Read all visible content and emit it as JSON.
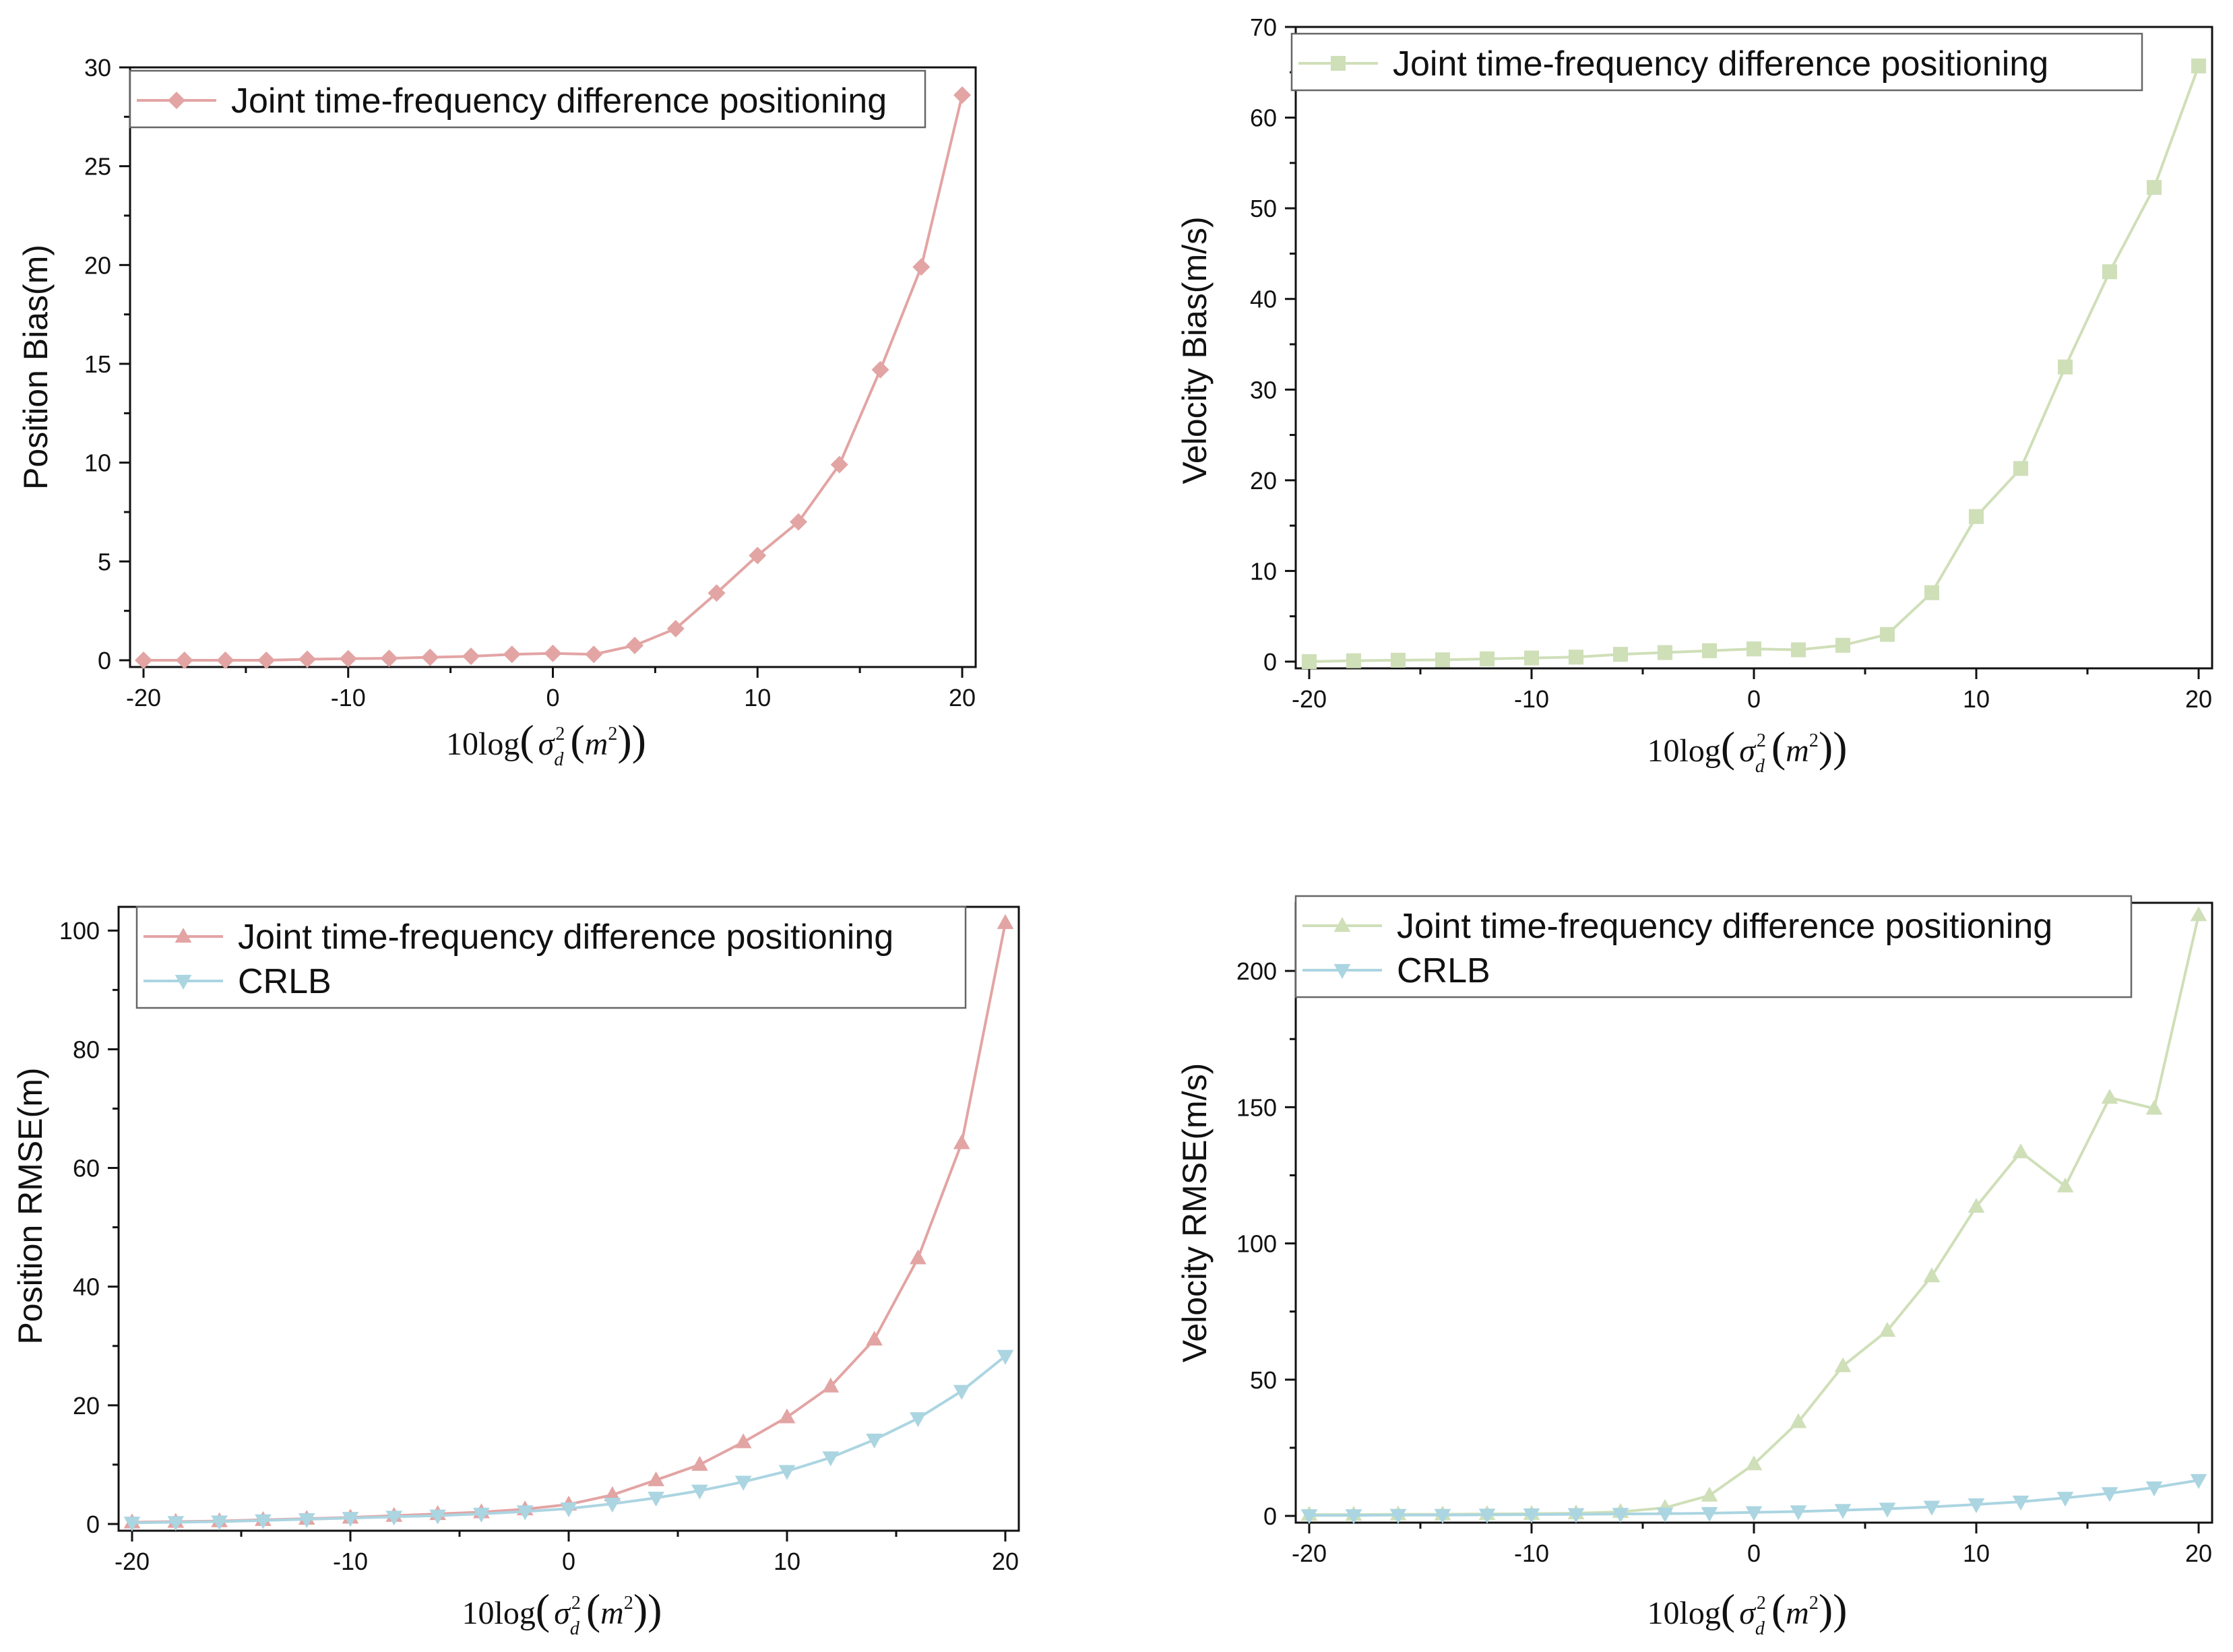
{
  "chart_data": [
    {
      "id": "pos_bias",
      "type": "line",
      "x_label": "10log(σd²(m²))",
      "ylabel": "Position Bias(m)",
      "xlim": [
        -20,
        20
      ],
      "ylim": [
        0,
        30
      ],
      "xticks": [
        -20,
        -10,
        0,
        10,
        20
      ],
      "yticks": [
        0,
        5,
        10,
        15,
        20,
        25,
        30
      ],
      "xtick_labels": [
        "-20",
        "-10",
        "0",
        "10",
        "20"
      ],
      "ytick_labels": [
        "0",
        "5",
        "10",
        "15",
        "20",
        "25",
        "30"
      ],
      "x": [
        -20,
        -18,
        -16,
        -14,
        -12,
        -10,
        -8,
        -6,
        -4,
        -2,
        0,
        2,
        4,
        6,
        8,
        10,
        12,
        14,
        16,
        18,
        20
      ],
      "series": [
        {
          "name": "Joint time-frequency difference positioning",
          "color": "#e3a4a4",
          "marker": "diamond",
          "values": [
            0.0,
            0.0,
            0.0,
            0.0,
            0.05,
            0.08,
            0.1,
            0.15,
            0.2,
            0.3,
            0.35,
            0.3,
            0.75,
            1.6,
            3.4,
            5.3,
            7.0,
            9.9,
            14.7,
            19.9,
            28.6
          ]
        }
      ],
      "legend": "top"
    },
    {
      "id": "vel_bias",
      "type": "line",
      "x_label": "10log(σd²(m²))",
      "ylabel": "Velocity Bias(m/s)",
      "xlim": [
        -20,
        20
      ],
      "ylim": [
        0,
        70
      ],
      "xticks": [
        -20,
        -10,
        0,
        10,
        20
      ],
      "yticks": [
        0,
        10,
        20,
        30,
        40,
        50,
        60,
        70
      ],
      "xtick_labels": [
        "-20",
        "-10",
        "0",
        "10",
        "20"
      ],
      "ytick_labels": [
        "0",
        "10",
        "20",
        "30",
        "40",
        "50",
        "60",
        "70"
      ],
      "x": [
        -20,
        -18,
        -16,
        -14,
        -12,
        -10,
        -8,
        -6,
        -4,
        -2,
        0,
        2,
        4,
        6,
        8,
        10,
        12,
        14,
        16,
        18,
        20
      ],
      "series": [
        {
          "name": "Joint time-frequency difference positioning",
          "color": "#cfdfb8",
          "marker": "square",
          "values": [
            0.0,
            0.1,
            0.15,
            0.2,
            0.3,
            0.4,
            0.5,
            0.8,
            1.0,
            1.2,
            1.4,
            1.3,
            1.8,
            3.0,
            7.6,
            16.0,
            21.3,
            32.5,
            43.0,
            52.3,
            65.7
          ]
        }
      ],
      "legend": "top"
    },
    {
      "id": "pos_rmse",
      "type": "line",
      "x_label": "10log(σd²(m²))",
      "ylabel": "Position RMSE(m)",
      "xlim": [
        -20,
        20
      ],
      "ylim": [
        0,
        104
      ],
      "xticks": [
        -20,
        -10,
        0,
        10,
        20
      ],
      "yticks": [
        0,
        20,
        40,
        60,
        80,
        100
      ],
      "xtick_labels": [
        "-20",
        "-10",
        "0",
        "10",
        "20"
      ],
      "ytick_labels": [
        "0",
        "20",
        "40",
        "60",
        "80",
        "100"
      ],
      "x": [
        -20,
        -18,
        -16,
        -14,
        -12,
        -10,
        -8,
        -6,
        -4,
        -2,
        0,
        2,
        4,
        6,
        8,
        10,
        12,
        14,
        16,
        18,
        20
      ],
      "series": [
        {
          "name": "Joint time-frequency difference positioning",
          "color": "#e3a4a4",
          "marker": "triangle-up",
          "values": [
            0.3,
            0.4,
            0.5,
            0.7,
            0.9,
            1.1,
            1.4,
            1.7,
            2.0,
            2.5,
            3.3,
            4.9,
            7.4,
            10.0,
            13.8,
            18.0,
            23.2,
            31.1,
            44.8,
            64.2,
            101.3
          ]
        },
        {
          "name": "CRLB",
          "color": "#abd5e1",
          "marker": "triangle-down",
          "values": [
            0.2,
            0.3,
            0.4,
            0.6,
            0.8,
            1.0,
            1.2,
            1.4,
            1.7,
            2.1,
            2.6,
            3.4,
            4.4,
            5.6,
            7.1,
            8.9,
            11.2,
            14.2,
            17.8,
            22.4,
            28.3
          ]
        }
      ],
      "legend": "top"
    },
    {
      "id": "vel_rmse",
      "type": "line",
      "x_label": "10log(σd²(m²))",
      "ylabel": "Velocity RMSE(m/s)",
      "xlim": [
        -20,
        20
      ],
      "ylim": [
        0,
        225
      ],
      "xticks": [
        -20,
        -10,
        0,
        10,
        20
      ],
      "yticks": [
        0,
        50,
        100,
        150,
        200
      ],
      "xtick_labels": [
        "-20",
        "-10",
        "0",
        "10",
        "20"
      ],
      "ytick_labels": [
        "0",
        "50",
        "100",
        "150",
        "200"
      ],
      "x": [
        -20,
        -18,
        -16,
        -14,
        -12,
        -10,
        -8,
        -6,
        -4,
        -2,
        0,
        2,
        4,
        6,
        8,
        10,
        12,
        14,
        16,
        18,
        20
      ],
      "series": [
        {
          "name": "Joint time-frequency difference positioning",
          "color": "#cfdfb8",
          "marker": "triangle-up",
          "values": [
            0.5,
            0.5,
            0.6,
            0.6,
            0.7,
            0.8,
            1.0,
            1.5,
            3.0,
            7.5,
            19.0,
            34.5,
            55.0,
            68.0,
            88.0,
            113.5,
            133.5,
            121.0,
            153.5,
            149.5,
            220.5
          ]
        },
        {
          "name": "CRLB",
          "color": "#abd5e1",
          "marker": "triangle-down",
          "values": [
            0.2,
            0.2,
            0.3,
            0.3,
            0.4,
            0.5,
            0.6,
            0.7,
            0.8,
            1.0,
            1.3,
            1.6,
            2.1,
            2.6,
            3.3,
            4.2,
            5.2,
            6.6,
            8.3,
            10.4,
            13.1
          ]
        }
      ],
      "legend": "top"
    }
  ]
}
